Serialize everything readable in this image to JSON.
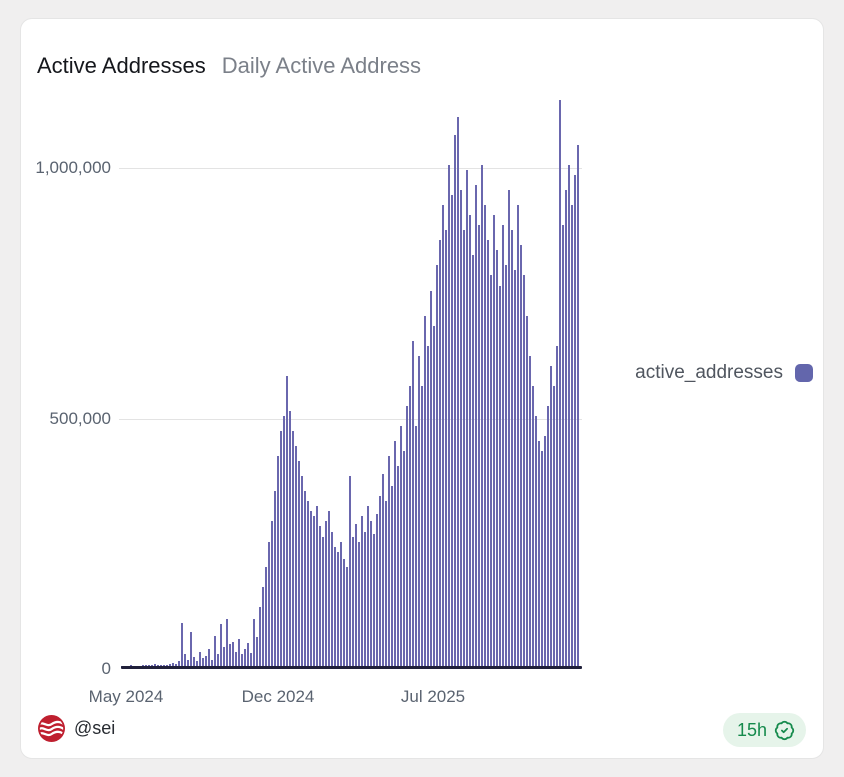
{
  "card": {
    "title": "Active Addresses",
    "subtitle": "Daily Active Address"
  },
  "legend": {
    "label": "active_addresses",
    "swatch_color": "#6366ac"
  },
  "footer": {
    "handle": "@sei",
    "logo_color": "#bf1f2f",
    "badge": {
      "label": "15h",
      "icon": "verified-check-icon",
      "text_color": "#158a4c",
      "bg_color": "#e6f4ea"
    }
  },
  "chart_data": {
    "type": "bar",
    "title": "Active Addresses",
    "subtitle": "Daily Active Address",
    "ylabel": "",
    "xlabel": "",
    "ylim": [
      0,
      1200000
    ],
    "grid": "horizontal-only",
    "legend_position": "right",
    "bar_color": "#6a67ae",
    "y_ticks": [
      {
        "label": "1,000,000",
        "value": 1000000
      },
      {
        "label": "500,000",
        "value": 500000
      },
      {
        "label": "0",
        "value": 0
      }
    ],
    "x_ticks": [
      {
        "label": "May 2024",
        "frac": 0.01
      },
      {
        "label": "Dec 2024",
        "frac": 0.34
      },
      {
        "label": "Jul 2025",
        "frac": 0.68
      }
    ],
    "series": [
      {
        "name": "active_addresses",
        "color": "#6a67ae",
        "values": [
          2000,
          3000,
          2000,
          4000,
          3000,
          2500,
          3000,
          5000,
          4000,
          3500,
          4000,
          6000,
          5000,
          4500,
          4000,
          5000,
          6000,
          8000,
          7000,
          12000,
          88000,
          25000,
          15000,
          70000,
          20000,
          12000,
          30000,
          18000,
          22000,
          35000,
          15000,
          62000,
          25000,
          86000,
          40000,
          95000,
          45000,
          50000,
          30000,
          55000,
          25000,
          35000,
          48000,
          28000,
          96000,
          60000,
          120000,
          160000,
          200000,
          250000,
          290000,
          350000,
          420000,
          470000,
          500000,
          580000,
          510000,
          470000,
          440000,
          410000,
          380000,
          350000,
          330000,
          310000,
          300000,
          320000,
          280000,
          260000,
          290000,
          310000,
          270000,
          240000,
          230000,
          250000,
          215000,
          200000,
          380000,
          260000,
          285000,
          250000,
          300000,
          270000,
          320000,
          290000,
          265000,
          305000,
          340000,
          385000,
          330000,
          420000,
          360000,
          450000,
          400000,
          480000,
          430000,
          520000,
          560000,
          650000,
          480000,
          620000,
          560000,
          700000,
          640000,
          750000,
          680000,
          800000,
          850000,
          920000,
          870000,
          1000000,
          940000,
          1060000,
          1095000,
          950000,
          870000,
          990000,
          900000,
          820000,
          960000,
          880000,
          1000000,
          920000,
          850000,
          780000,
          900000,
          830000,
          760000,
          880000,
          800000,
          950000,
          870000,
          790000,
          920000,
          840000,
          780000,
          700000,
          620000,
          560000,
          500000,
          450000,
          430000,
          460000,
          520000,
          600000,
          560000,
          640000,
          1130000,
          880000,
          950000,
          1000000,
          920000,
          980000,
          1040000
        ]
      }
    ]
  }
}
